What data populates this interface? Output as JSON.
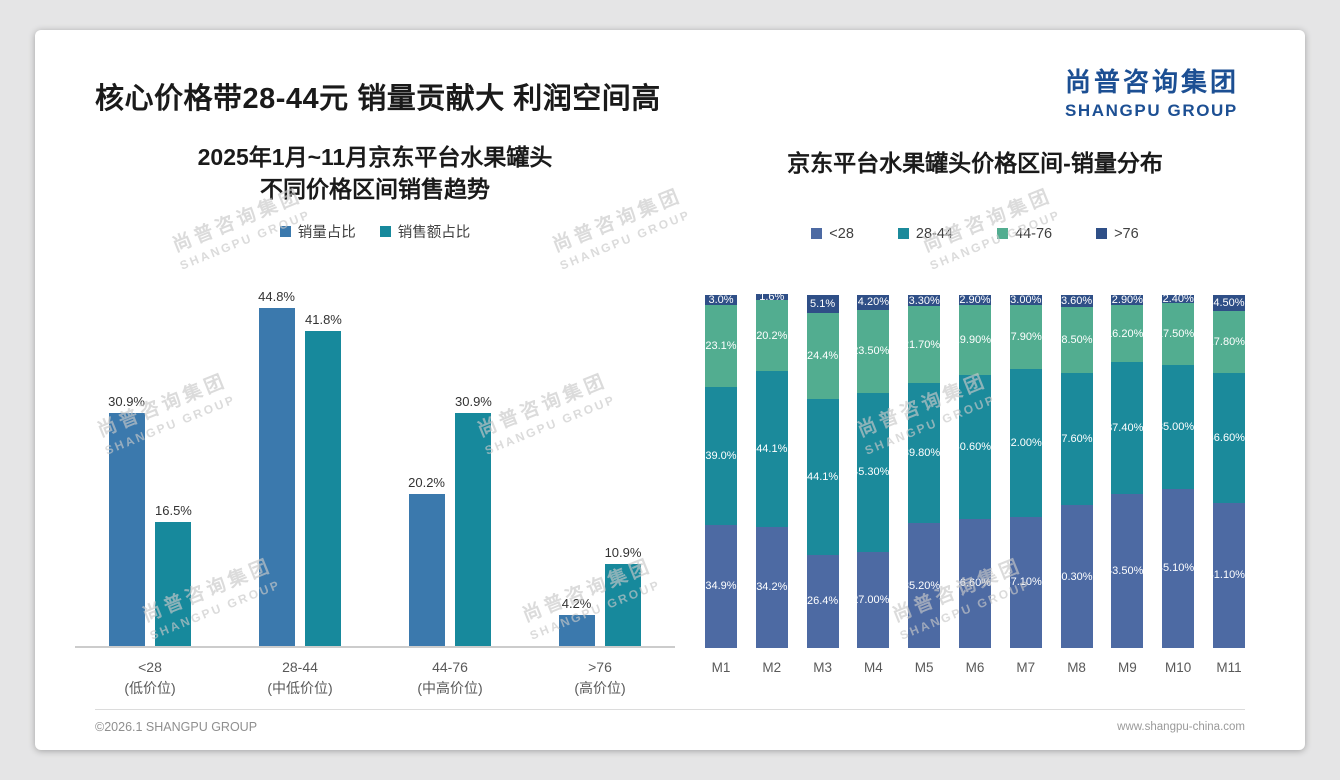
{
  "slide": {
    "title": "核心价格带28-44元 销量贡献大 利润空间高",
    "logo": {
      "cn": "尚普咨询集团",
      "en": "SHANGPU GROUP"
    },
    "watermark": {
      "line1": "尚普咨询集团",
      "line2": "SHANGPU GROUP"
    },
    "footer": {
      "left": "©2026.1 SHANGPU GROUP",
      "right": "www.shangpu-china.com"
    }
  },
  "chart_data": [
    {
      "type": "bar",
      "stacked": false,
      "title": "2025年1月~11月京东平台水果罐头 不同价格区间销售趋势",
      "title_line1": "2025年1月~11月京东平台水果罐头",
      "title_line2": "不同价格区间销售趋势",
      "categories": [
        "<28 (低价位)",
        "28-44 (中低价位)",
        "44-76 (中高价位)",
        ">76 (高价位)"
      ],
      "category_lines": [
        [
          "<28",
          "(低价位)"
        ],
        [
          "28-44",
          "(中低价位)"
        ],
        [
          "44-76",
          "(中高价位)"
        ],
        [
          ">76",
          "(高价位)"
        ]
      ],
      "series": [
        {
          "name": "销量占比",
          "color": "#3b79ad",
          "values": [
            30.9,
            44.8,
            20.2,
            4.2
          ]
        },
        {
          "name": "销售额占比",
          "color": "#17899c",
          "values": [
            16.5,
            41.8,
            30.9,
            10.9
          ]
        }
      ],
      "unit": "%",
      "ylim": [
        0,
        50
      ],
      "grid": false,
      "legend_position": "top"
    },
    {
      "type": "bar",
      "stacked": true,
      "percent": true,
      "title": "京东平台水果罐头价格区间-销量分布",
      "categories": [
        "M1",
        "M2",
        "M3",
        "M4",
        "M5",
        "M6",
        "M7",
        "M8",
        "M9",
        "M10",
        "M11"
      ],
      "series": [
        {
          "name": "<28",
          "color": "#4d6aa3",
          "values": [
            "34.9",
            "34.2",
            "26.4",
            "27.00",
            "35.20",
            "36.60",
            "37.10",
            "40.30",
            "43.50",
            "45.10",
            "41.10"
          ]
        },
        {
          "name": "28-44",
          "color": "#1b8a9b",
          "values": [
            "39.0",
            "44.1",
            "44.1",
            "45.30",
            "39.80",
            "40.60",
            "42.00",
            "37.60",
            "37.40",
            "35.00",
            "36.60"
          ]
        },
        {
          "name": "44-76",
          "color": "#52ad90",
          "values": [
            "23.1",
            "20.2",
            "24.4",
            "23.50",
            "21.70",
            "19.90",
            "17.90",
            "18.50",
            "16.20",
            "17.50",
            "17.80"
          ]
        },
        {
          "name": ">76",
          "color": "#2f4f87",
          "values": [
            "3.0",
            "1.6",
            "5.1",
            "4.20",
            "3.30",
            "2.90",
            "3.00",
            "3.60",
            "2.90",
            "2.40",
            "4.50"
          ]
        }
      ],
      "unit": "%",
      "ylim": [
        0,
        100
      ],
      "grid": false,
      "legend_position": "top"
    }
  ]
}
